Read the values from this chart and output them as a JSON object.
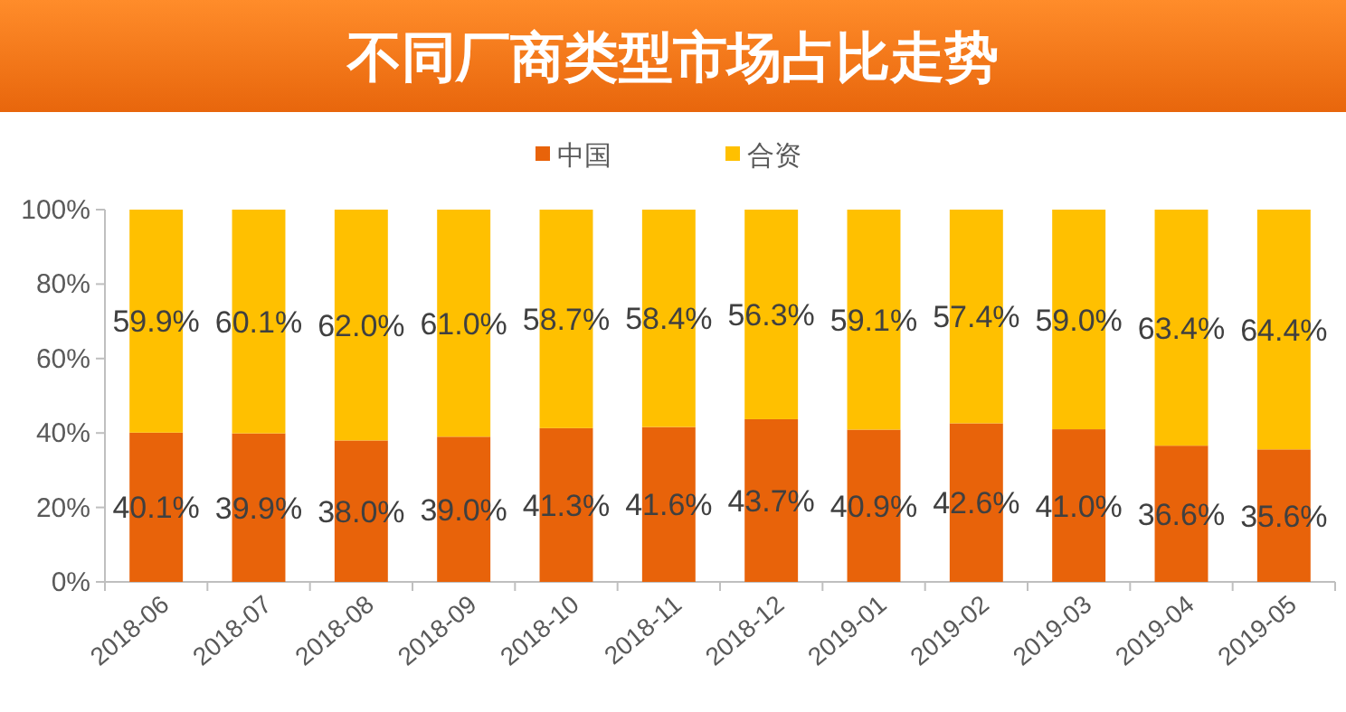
{
  "chart_data": {
    "type": "bar",
    "title": "不同厂商类型市场占比走势",
    "stacked": true,
    "legend": "top",
    "categories": [
      "2018-06",
      "2018-07",
      "2018-08",
      "2018-09",
      "2018-10",
      "2018-11",
      "2018-12",
      "2019-01",
      "2019-02",
      "2019-03",
      "2019-04",
      "2019-05"
    ],
    "series": [
      {
        "name": "中国",
        "color": "#e8630a",
        "values": [
          40.1,
          39.9,
          38.0,
          39.0,
          41.3,
          41.6,
          43.7,
          40.9,
          42.6,
          41.0,
          36.6,
          35.6
        ],
        "value_labels": [
          "40.1%",
          "39.9%",
          "38.0%",
          "39.0%",
          "41.3%",
          "41.6%",
          "43.7%",
          "40.9%",
          "42.6%",
          "41.0%",
          "36.6%",
          "35.6%"
        ]
      },
      {
        "name": "合资",
        "color": "#ffc000",
        "values": [
          59.9,
          60.1,
          62.0,
          61.0,
          58.7,
          58.4,
          56.3,
          59.1,
          57.4,
          59.0,
          63.4,
          64.4
        ],
        "value_labels": [
          "59.9%",
          "60.1%",
          "62.0%",
          "61.0%",
          "58.7%",
          "58.4%",
          "56.3%",
          "59.1%",
          "57.4%",
          "59.0%",
          "63.4%",
          "64.4%"
        ]
      }
    ],
    "ylim": [
      0,
      100
    ],
    "yticks": [
      {
        "value": 0,
        "label": "0%"
      },
      {
        "value": 20,
        "label": "20%"
      },
      {
        "value": 40,
        "label": "40%"
      },
      {
        "value": 60,
        "label": "60%"
      },
      {
        "value": 80,
        "label": "80%"
      },
      {
        "value": 100,
        "label": "100%"
      }
    ],
    "grid": false
  }
}
